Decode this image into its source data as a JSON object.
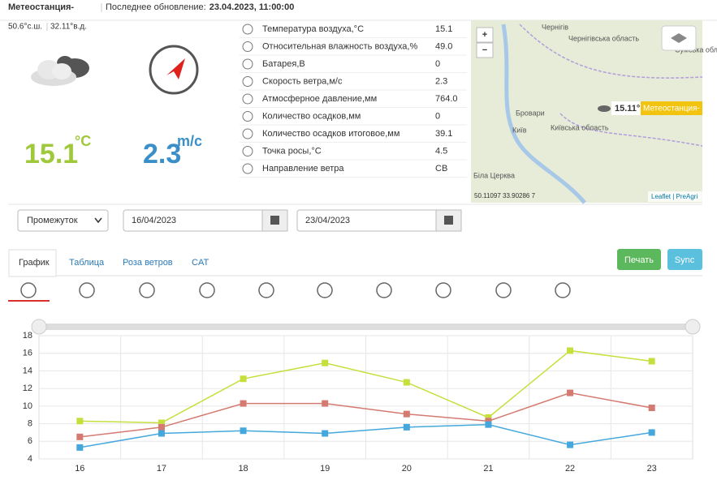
{
  "header": {
    "station": "Метеостанция-",
    "update_label": "Последнее обновление:",
    "update_value": "23.04.2023, 11:00:00"
  },
  "current": {
    "lat": "50.6°с.ш.",
    "lon": "32.11°в.д.",
    "temperature": "15.1",
    "temperature_unit": "°C",
    "wind": "2.3",
    "wind_unit": "m/c"
  },
  "sensors": [
    {
      "name": "Температура воздуха,°C",
      "value": "15.1"
    },
    {
      "name": "Относительная влажность воздуха,%",
      "value": "49.0"
    },
    {
      "name": "Батарея,В",
      "value": "0"
    },
    {
      "name": "Скорость ветра,м/с",
      "value": "2.3"
    },
    {
      "name": "Атмосферное давление,мм",
      "value": "764.0"
    },
    {
      "name": "Количество осадков,мм",
      "value": "0"
    },
    {
      "name": "Количество осадков итоговое,мм",
      "value": "39.1"
    },
    {
      "name": "Точка росы,°C",
      "value": "4.5"
    },
    {
      "name": "Направление ветра",
      "value": "СВ"
    }
  ],
  "map": {
    "zoom_in": "+",
    "zoom_out": "−",
    "places": [
      "Чернігів",
      "Чернігівська область",
      "Сумська область",
      "Бровари",
      "Київ",
      "Київська область",
      "Біла Церква"
    ],
    "marker_temp": "15.11°",
    "marker_label": "Метеостанция-",
    "coords": "50.11097 33.90286 7",
    "attribution": "Leaflet | PreAgri"
  },
  "controls": {
    "period": "Промежуток",
    "date_from": "16/04/2023",
    "date_to": "23/04/2023"
  },
  "tabs": [
    "График",
    "Таблица",
    "Роза ветров",
    "CAT"
  ],
  "buttons": {
    "print": "Печать",
    "sync": "Sync"
  },
  "chart_data": {
    "type": "line",
    "categories": [
      "16",
      "17",
      "18",
      "19",
      "20",
      "21",
      "22",
      "23"
    ],
    "series": [
      {
        "color": "#c6df3c",
        "values": [
          8.3,
          8.1,
          13.1,
          14.9,
          12.7,
          8.7,
          16.3,
          15.1
        ]
      },
      {
        "color": "#d47a70",
        "values": [
          6.5,
          7.6,
          10.3,
          10.3,
          9.1,
          8.3,
          11.5,
          9.8
        ]
      },
      {
        "color": "#44a8dc",
        "values": [
          5.3,
          6.9,
          7.2,
          6.9,
          7.6,
          7.9,
          5.6,
          7.0
        ]
      }
    ],
    "ylim": [
      4,
      18
    ],
    "yticks": [
      4,
      6,
      8,
      10,
      12,
      14,
      16,
      18
    ],
    "grid": true
  }
}
